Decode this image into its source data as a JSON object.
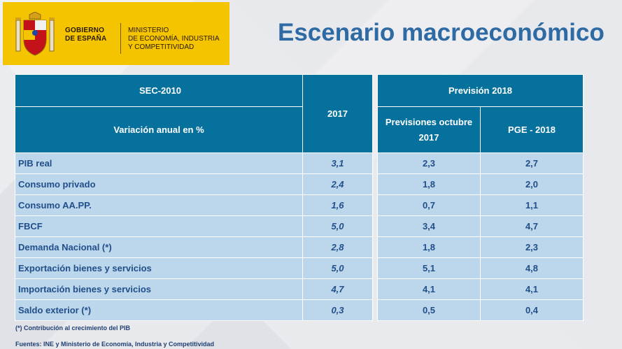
{
  "header": {
    "gov_lines": [
      "GOBIERNO",
      "DE ESPAÑA"
    ],
    "ministry_lines": [
      "MINISTERIO",
      "DE ECONOMÍA, INDUSTRIA",
      "Y COMPETITIVIDAD"
    ]
  },
  "title": "Escenario macroeconómico",
  "table_left": {
    "header_top": "SEC-2010",
    "header_sub": "Variación anual en %",
    "header_year": "2017"
  },
  "table_right": {
    "header_top": "Previsión 2018",
    "col_prev": "Previsiones octubre 2017",
    "col_pge": "PGE - 2018"
  },
  "rows": [
    {
      "label": "PIB real",
      "y2017": "3,1",
      "prev": "2,3",
      "pge": "2,7"
    },
    {
      "label": "Consumo privado",
      "y2017": "2,4",
      "prev": "1,8",
      "pge": "2,0"
    },
    {
      "label": "Consumo  AA.PP.",
      "y2017": "1,6",
      "prev": "0,7",
      "pge": "1,1"
    },
    {
      "label": "FBCF",
      "y2017": "5,0",
      "prev": "3,4",
      "pge": "4,7"
    },
    {
      "label": "Demanda Nacional (*)",
      "y2017": "2,8",
      "prev": "1,8",
      "pge": "2,3"
    },
    {
      "label": "Exportación bienes y servicios",
      "y2017": "5,0",
      "prev": "5,1",
      "pge": "4,8"
    },
    {
      "label": "Importación bienes y servicios",
      "y2017": "4,7",
      "prev": "4,1",
      "pge": "4,1"
    },
    {
      "label": "Saldo exterior (*)",
      "y2017": "0,3",
      "prev": "0,5",
      "pge": "0,4"
    }
  ],
  "notes": {
    "footnote": "(*) Contribución al crecimiento del PIB",
    "sources": "Fuentes: INE y Ministerio de Economía, Industria y Competitividad"
  }
}
